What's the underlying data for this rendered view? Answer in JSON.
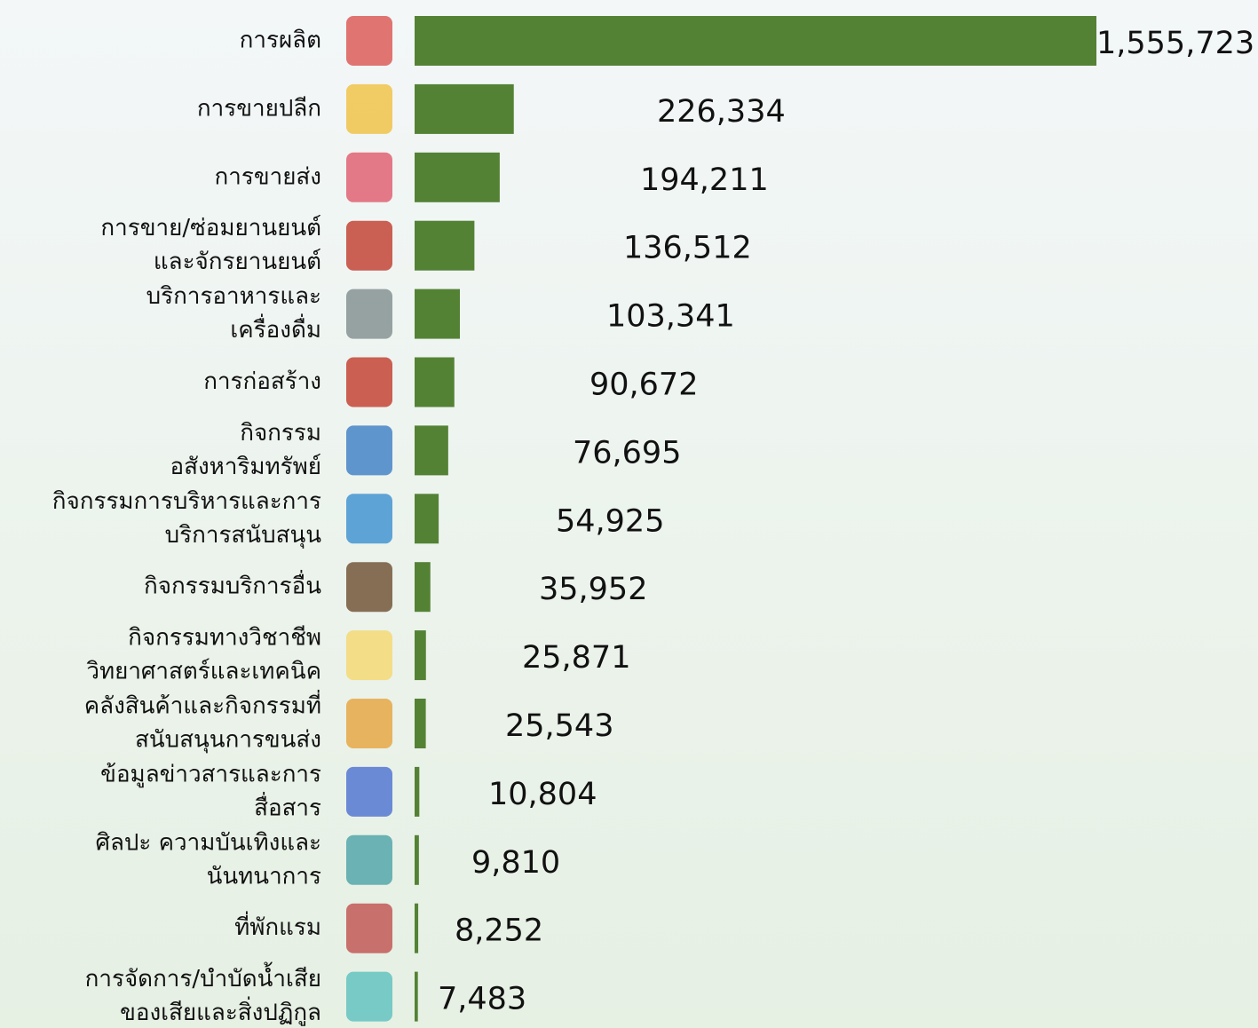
{
  "chart_data": {
    "type": "bar",
    "orientation": "horizontal",
    "color": "#548235",
    "categories": [
      [
        "การผลิต"
      ],
      [
        "การขายปลีก"
      ],
      [
        "การขายส่ง"
      ],
      [
        "การขาย/ซ่อมยานยนต์",
        "และจักรยานยนต์"
      ],
      [
        "บริการอาหารและ",
        "เครื่องดื่ม"
      ],
      [
        "การก่อสร้าง"
      ],
      [
        "กิจกรรม",
        "อสังหาริมทรัพย์"
      ],
      [
        "กิจกรรมการบริหารและการ",
        "บริการสนับสนุน"
      ],
      [
        "กิจกรรมบริการอื่น"
      ],
      [
        "กิจกรรมทางวิชาชีพ",
        "วิทยาศาสตร์และเทคนิค"
      ],
      [
        "คลังสินค้าและกิจกรรมที่",
        "สนับสนุนการขนส่ง"
      ],
      [
        "ข้อมูลข่าวสารและการ",
        "สื่อสาร"
      ],
      [
        "ศิลปะ ความบันเทิงและ",
        "นันทนาการ"
      ],
      [
        "ที่พักแรม"
      ],
      [
        "การจัดการ/บำบัดน้ำเสีย",
        "ของเสียและสิ่งปฏิกูล"
      ]
    ],
    "values": [
      1555723,
      226334,
      194211,
      136512,
      103341,
      90672,
      76695,
      54925,
      35952,
      25871,
      25543,
      10804,
      9810,
      8252,
      7483
    ],
    "value_labels": [
      "1,555,723",
      "226,334",
      "194,211",
      "136,512",
      "103,341",
      "90,672",
      "76,695",
      "54,925",
      "35,952",
      "25,871",
      "25,543",
      "10,804",
      "9,810",
      "8,252",
      "7,483"
    ]
  }
}
